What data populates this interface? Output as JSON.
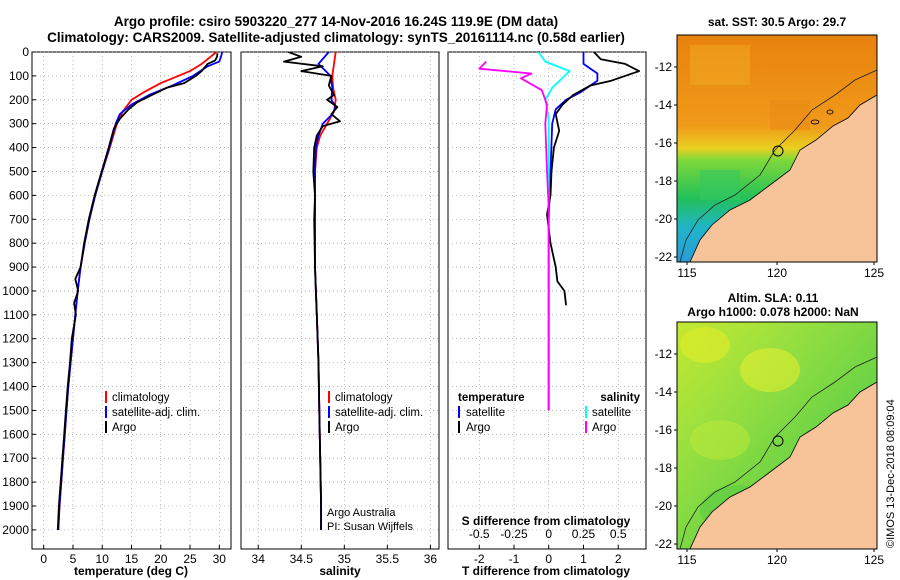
{
  "header": {
    "title_line1": "Argo profile: csiro 5903220_277 14-Nov-2016 16.24S 119.9E (DM data)",
    "title_line2": "Climatology: CARS2009. Satellite-adjusted climatology: synTS_20161114.nc (0.58d earlier)"
  },
  "colors": {
    "climatology": "#ff0000",
    "satellite": "#0000ff",
    "argo": "#000000",
    "t_sat_diff": "#0000ff",
    "s_sat_diff": "#00ffff",
    "s_argo_diff": "#ff00ff",
    "land": "#f7c49a",
    "depth_contour": "#1a1a1a"
  },
  "legend": {
    "climatology": "climatology",
    "satellite_adj": "satellite-adj. clim.",
    "argo": "Argo",
    "temperature": "temperature",
    "salinity": "salinity",
    "satellite": "satellite"
  },
  "credits": {
    "line1": "Argo Australia",
    "line2": "PI: Susan Wijffels",
    "stamp": "©IMOS 13-Dec-2018 08:09:04"
  },
  "map_sst": {
    "title": "sat. SST: 30.5 Argo: 29.7",
    "lat_ticks": [
      "-12",
      "-14",
      "-16",
      "-18",
      "-20",
      "-22"
    ],
    "lon_ticks": [
      "115",
      "120",
      "125"
    ]
  },
  "map_sla": {
    "title_line1": "Altim. SLA: 0.11",
    "title_line2": "Argo h1000: 0.078 h2000: NaN",
    "lat_ticks": [
      "-12",
      "-14",
      "-16",
      "-18",
      "-20",
      "-22"
    ],
    "lon_ticks": [
      "115",
      "120",
      "125"
    ]
  },
  "chart_data": [
    {
      "type": "line",
      "panel": "temperature",
      "xlabel": "temperature (deg C)",
      "ylabel": "depth (dbar)",
      "xlim": [
        -2,
        32
      ],
      "ylim": [
        2080,
        0
      ],
      "xticks": [
        0,
        5,
        10,
        15,
        20,
        25,
        30
      ],
      "yticks": [
        0,
        100,
        200,
        300,
        400,
        500,
        600,
        700,
        800,
        900,
        1000,
        1100,
        1200,
        1300,
        1400,
        1500,
        1600,
        1700,
        1800,
        1900,
        2000
      ],
      "series": [
        {
          "name": "climatology",
          "color_key": "climatology",
          "points": [
            [
              29.5,
              0
            ],
            [
              28.5,
              20
            ],
            [
              27,
              50
            ],
            [
              25,
              80
            ],
            [
              23,
              100
            ],
            [
              20,
              130
            ],
            [
              17,
              170
            ],
            [
              15,
              200
            ],
            [
              13.5,
              250
            ],
            [
              12.5,
              300
            ],
            [
              11.3,
              400
            ],
            [
              10,
              500
            ],
            [
              8.8,
              600
            ],
            [
              7.8,
              700
            ],
            [
              7,
              800
            ],
            [
              6.3,
              900
            ],
            [
              5.8,
              1000
            ],
            [
              5.4,
              1100
            ],
            [
              5,
              1200
            ],
            [
              4.6,
              1300
            ],
            [
              4.2,
              1400
            ],
            [
              3.9,
              1500
            ],
            [
              3.6,
              1600
            ],
            [
              3.3,
              1700
            ],
            [
              3,
              1800
            ],
            [
              2.7,
              1900
            ],
            [
              2.5,
              2000
            ]
          ]
        },
        {
          "name": "satellite-adj. clim.",
          "color_key": "satellite",
          "points": [
            [
              30.5,
              0
            ],
            [
              30.3,
              20
            ],
            [
              30,
              40
            ],
            [
              28,
              60
            ],
            [
              25.5,
              100
            ],
            [
              22,
              140
            ],
            [
              18,
              180
            ],
            [
              15,
              220
            ],
            [
              13,
              260
            ],
            [
              12.3,
              300
            ],
            [
              11.2,
              400
            ],
            [
              10,
              500
            ],
            [
              8.8,
              600
            ],
            [
              7.8,
              700
            ],
            [
              7,
              800
            ],
            [
              6.3,
              900
            ],
            [
              5.8,
              1000
            ],
            [
              5.4,
              1100
            ],
            [
              5,
              1200
            ],
            [
              4.6,
              1300
            ],
            [
              4.2,
              1400
            ],
            [
              3.9,
              1500
            ],
            [
              3.6,
              1600
            ],
            [
              3.3,
              1700
            ],
            [
              3,
              1800
            ],
            [
              2.7,
              1900
            ],
            [
              2.5,
              2000
            ]
          ]
        },
        {
          "name": "Argo",
          "color_key": "argo",
          "points": [
            [
              29.7,
              5
            ],
            [
              29.6,
              20
            ],
            [
              29.3,
              35
            ],
            [
              28,
              50
            ],
            [
              27,
              80
            ],
            [
              26,
              100
            ],
            [
              24,
              130
            ],
            [
              21,
              150
            ],
            [
              18.5,
              180
            ],
            [
              16,
              210
            ],
            [
              14.5,
              240
            ],
            [
              13,
              280
            ],
            [
              12,
              320
            ],
            [
              11.1,
              400
            ],
            [
              9.9,
              500
            ],
            [
              8.7,
              600
            ],
            [
              7.7,
              700
            ],
            [
              6.9,
              800
            ],
            [
              6.3,
              900
            ],
            [
              5.4,
              950
            ],
            [
              5.9,
              1000
            ],
            [
              5.2,
              1050
            ],
            [
              5.5,
              1100
            ],
            [
              4.8,
              1200
            ],
            [
              4.5,
              1300
            ],
            [
              4.1,
              1400
            ],
            [
              3.8,
              1500
            ],
            [
              3.5,
              1600
            ],
            [
              3.2,
              1700
            ],
            [
              2.9,
              1800
            ],
            [
              2.6,
              1900
            ],
            [
              2.4,
              2000
            ]
          ]
        }
      ]
    },
    {
      "type": "line",
      "panel": "salinity",
      "xlabel": "salinity",
      "xlim": [
        33.8,
        36.1
      ],
      "ylim": [
        2080,
        0
      ],
      "xticks": [
        34,
        34.5,
        35,
        35.5,
        36
      ],
      "xticklabels": [
        "34",
        "34.5",
        "35",
        "35.5",
        "36"
      ],
      "series": [
        {
          "name": "climatology",
          "color_key": "climatology",
          "points": [
            [
              34.9,
              0
            ],
            [
              34.88,
              50
            ],
            [
              34.86,
              100
            ],
            [
              34.87,
              150
            ],
            [
              34.9,
              200
            ],
            [
              34.88,
              250
            ],
            [
              34.8,
              300
            ],
            [
              34.72,
              350
            ],
            [
              34.68,
              400
            ],
            [
              34.66,
              500
            ],
            [
              34.66,
              700
            ],
            [
              34.66,
              900
            ],
            [
              34.68,
              1100
            ],
            [
              34.7,
              1300
            ],
            [
              34.71,
              1500
            ],
            [
              34.72,
              1700
            ],
            [
              34.73,
              1900
            ],
            [
              34.73,
              2000
            ]
          ]
        },
        {
          "name": "satellite-adj. clim.",
          "color_key": "satellite",
          "points": [
            [
              34.82,
              0
            ],
            [
              34.7,
              50
            ],
            [
              34.84,
              100
            ],
            [
              34.86,
              150
            ],
            [
              34.85,
              200
            ],
            [
              34.9,
              230
            ],
            [
              34.86,
              260
            ],
            [
              34.75,
              300
            ],
            [
              34.7,
              350
            ],
            [
              34.67,
              400
            ],
            [
              34.66,
              500
            ],
            [
              34.66,
              700
            ],
            [
              34.66,
              900
            ],
            [
              34.68,
              1100
            ],
            [
              34.7,
              1300
            ],
            [
              34.71,
              1500
            ],
            [
              34.72,
              1700
            ],
            [
              34.73,
              1900
            ],
            [
              34.73,
              2000
            ]
          ]
        },
        {
          "name": "Argo",
          "color_key": "argo",
          "points": [
            [
              34.35,
              0
            ],
            [
              34.5,
              20
            ],
            [
              34.3,
              40
            ],
            [
              34.75,
              60
            ],
            [
              34.5,
              80
            ],
            [
              34.85,
              100
            ],
            [
              34.82,
              140
            ],
            [
              34.88,
              180
            ],
            [
              34.8,
              200
            ],
            [
              34.92,
              230
            ],
            [
              34.85,
              260
            ],
            [
              34.95,
              290
            ],
            [
              34.75,
              310
            ],
            [
              34.68,
              350
            ],
            [
              34.65,
              400
            ],
            [
              34.64,
              500
            ],
            [
              34.66,
              600
            ],
            [
              34.65,
              700
            ],
            [
              34.66,
              900
            ],
            [
              34.68,
              1100
            ],
            [
              34.7,
              1300
            ],
            [
              34.71,
              1500
            ],
            [
              34.72,
              1700
            ],
            [
              34.73,
              1900
            ],
            [
              34.73,
              2000
            ]
          ]
        }
      ]
    },
    {
      "type": "line",
      "panel": "difference",
      "xlabel": "T difference from climatology",
      "x2label": "S difference from climatology",
      "xlim": [
        -2.9,
        2.8
      ],
      "ylim": [
        2080,
        0
      ],
      "xticks": [
        -2,
        -1,
        0,
        1,
        2
      ],
      "xticklabels": [
        "-2",
        "-1",
        "0",
        "1",
        "2"
      ],
      "x2ticks": [
        -0.5,
        -0.25,
        0,
        0.25,
        0.5
      ],
      "x2ticklabels": [
        "-0.5",
        "-0.25",
        "0",
        "0.25",
        "0.5"
      ],
      "x2_scale": 4,
      "series": [
        {
          "name": "T satellite",
          "color_key": "t_sat_diff",
          "points": [
            [
              1,
              0
            ],
            [
              1,
              50
            ],
            [
              1.4,
              90
            ],
            [
              1.4,
              120
            ],
            [
              0.9,
              170
            ],
            [
              0.5,
              200
            ],
            [
              0.2,
              240
            ],
            [
              0.1,
              300
            ],
            [
              0.05,
              500
            ],
            [
              0,
              700
            ],
            [
              0,
              1500
            ]
          ]
        },
        {
          "name": "T Argo",
          "color_key": "argo",
          "points": [
            [
              1.3,
              0
            ],
            [
              1.5,
              30
            ],
            [
              2.2,
              50
            ],
            [
              2.6,
              80
            ],
            [
              1.8,
              120
            ],
            [
              1.2,
              140
            ],
            [
              0.7,
              180
            ],
            [
              0.4,
              220
            ],
            [
              0.2,
              260
            ],
            [
              0.3,
              330
            ],
            [
              0.15,
              400
            ],
            [
              0.08,
              500
            ],
            [
              0.05,
              600
            ],
            [
              -0.05,
              680
            ],
            [
              0.05,
              800
            ],
            [
              0.2,
              900
            ],
            [
              0.25,
              960
            ],
            [
              0.45,
              1000
            ],
            [
              0.5,
              1060
            ]
          ]
        },
        {
          "name": "S satellite",
          "color_key": "s_sat_diff",
          "points": [
            [
              -0.3,
              0
            ],
            [
              -0.1,
              40
            ],
            [
              0.6,
              80
            ],
            [
              0.1,
              150
            ],
            [
              -0.1,
              200
            ],
            [
              0,
              280
            ],
            [
              0,
              500
            ],
            [
              0,
              1500
            ]
          ]
        },
        {
          "name": "S Argo",
          "color_key": "s_argo_diff",
          "points": [
            [
              -1.8,
              40
            ],
            [
              -2,
              70
            ],
            [
              -0.5,
              90
            ],
            [
              -0.8,
              110
            ],
            [
              -0.2,
              160
            ],
            [
              -0.05,
              220
            ],
            [
              -0.1,
              300
            ],
            [
              -0.05,
              500
            ],
            [
              0,
              650
            ],
            [
              0,
              1500
            ]
          ]
        }
      ]
    }
  ]
}
